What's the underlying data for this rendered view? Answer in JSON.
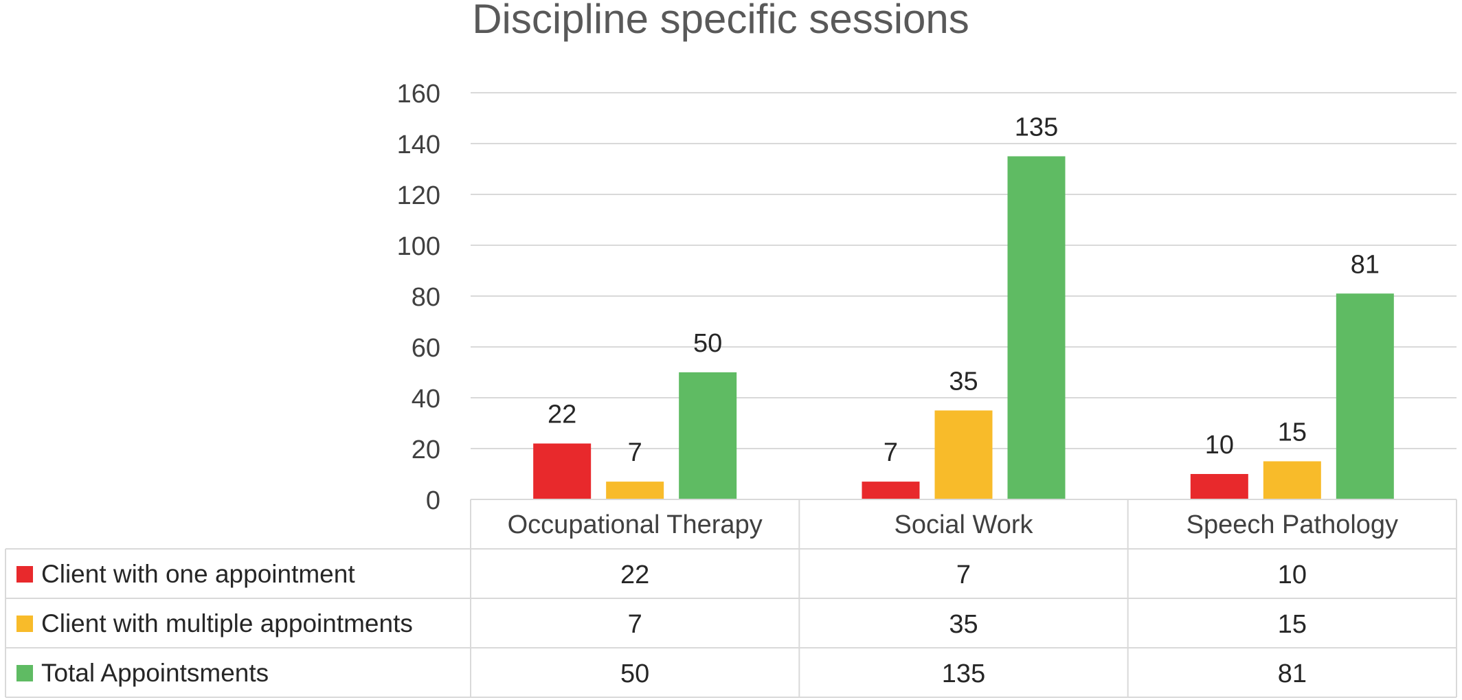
{
  "chart_data": {
    "type": "bar",
    "title": "Discipline specific sessions",
    "categories": [
      "Occupational Therapy",
      "Social Work",
      "Speech Pathology"
    ],
    "series": [
      {
        "name": "Client with one appointment",
        "values": [
          22,
          7,
          10
        ],
        "color": "#e8292c"
      },
      {
        "name": "Client with multiple appointments",
        "values": [
          7,
          35,
          15
        ],
        "color": "#f8bb2a"
      },
      {
        "name": "Total Appointsments",
        "values": [
          50,
          135,
          81
        ],
        "color": "#5fbb63"
      }
    ],
    "ylim": [
      0,
      160
    ],
    "yticks": [
      0,
      20,
      40,
      60,
      80,
      100,
      120,
      140,
      160
    ],
    "grid": true,
    "data_labels": true,
    "legend": "data table below chart",
    "colors": {
      "grid": "#d9d9d9",
      "text": "#404040",
      "title": "#595959"
    }
  }
}
